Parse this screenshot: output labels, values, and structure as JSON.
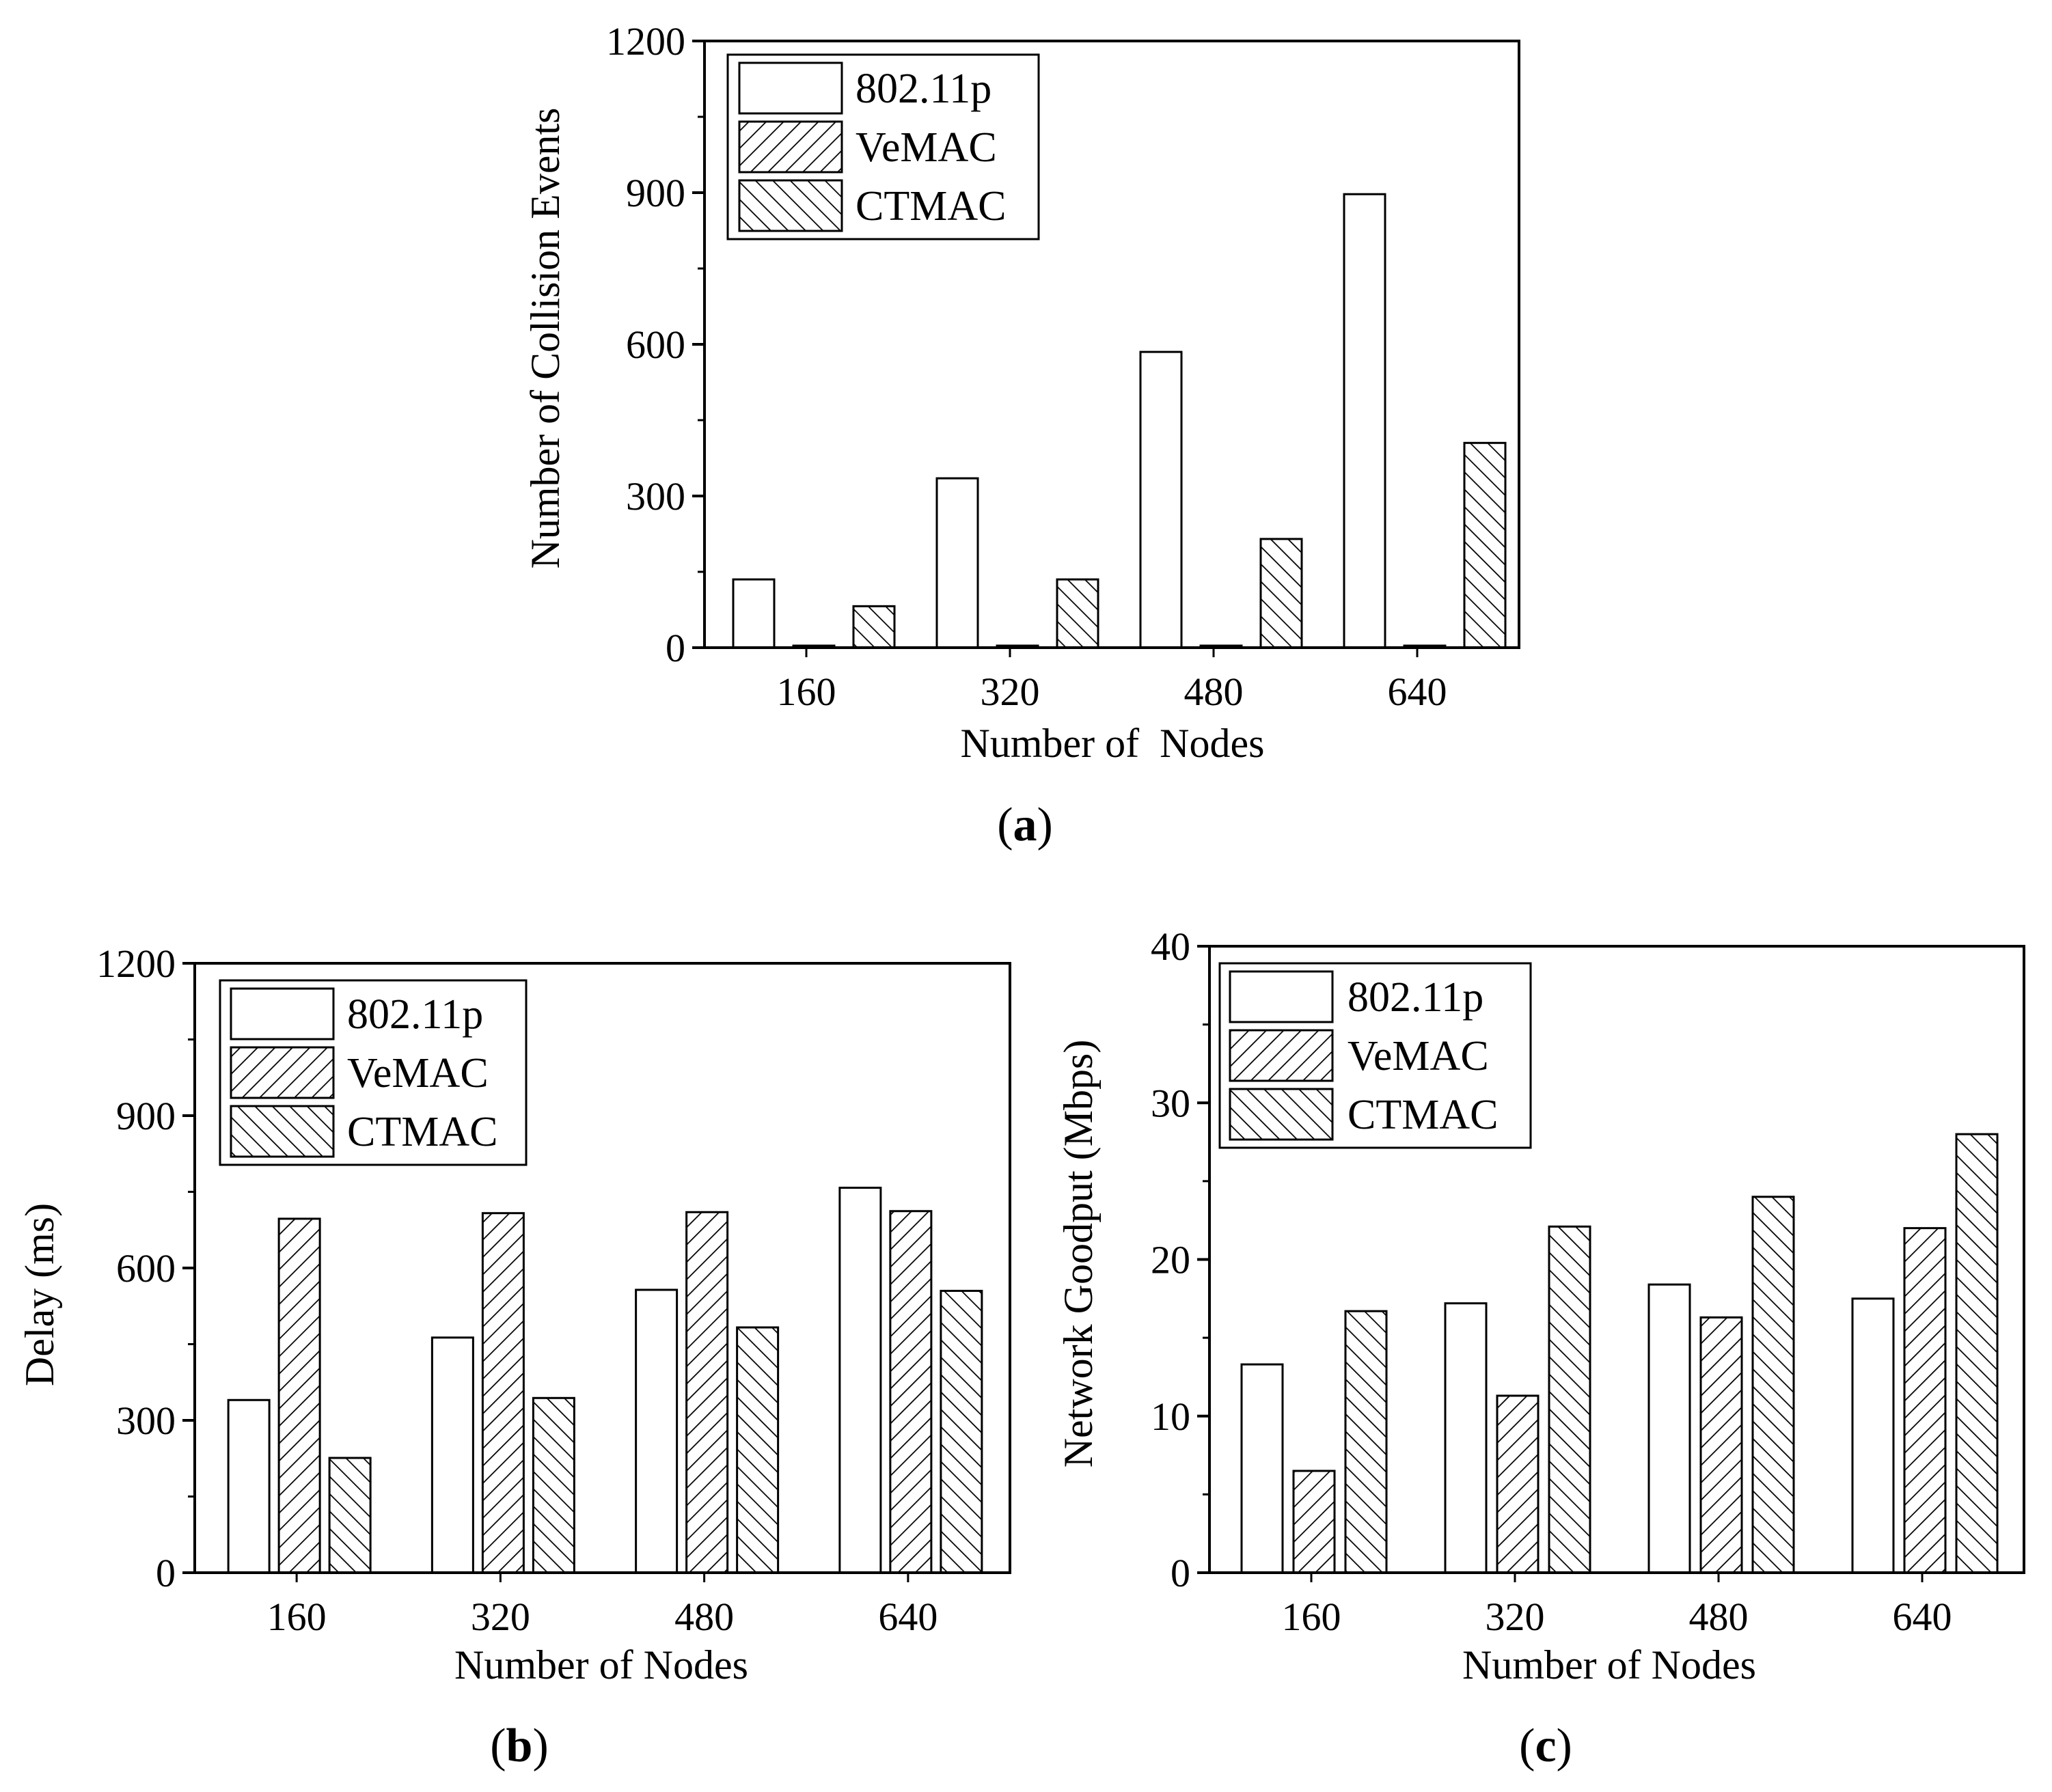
{
  "colors": {
    "ink": "#000000",
    "paper": "#ffffff"
  },
  "chart_data": [
    {
      "id": "a",
      "type": "bar",
      "caption": {
        "open": "(",
        "letter": "a",
        "close": ")"
      },
      "title": "",
      "xlabel": "Number of  Nodes",
      "ylabel": "Number of Collision Events",
      "categories": [
        "160",
        "320",
        "480",
        "640"
      ],
      "ylim": [
        0,
        1200
      ],
      "yticks": [
        "0",
        "300",
        "600",
        "900",
        "1200"
      ],
      "legend_position": "top-left",
      "series": [
        {
          "name": "802.11p",
          "pattern": "none",
          "values": [
            135,
            335,
            585,
            897
          ]
        },
        {
          "name": "VeMAC",
          "pattern": "forward-hatch",
          "values": [
            4,
            4,
            4,
            4
          ]
        },
        {
          "name": "CTMAC",
          "pattern": "back-hatch",
          "values": [
            82,
            135,
            215,
            405
          ]
        }
      ]
    },
    {
      "id": "b",
      "type": "bar",
      "caption": {
        "open": "(",
        "letter": "b",
        "close": ")"
      },
      "title": "",
      "xlabel": "Number of Nodes",
      "ylabel": "Delay (ms)",
      "categories": [
        "160",
        "320",
        "480",
        "640"
      ],
      "ylim": [
        0,
        1200
      ],
      "yticks": [
        "0",
        "300",
        "600",
        "900",
        "1200"
      ],
      "legend_position": "top-left",
      "series": [
        {
          "name": "802.11p",
          "pattern": "none",
          "values": [
            340,
            463,
            557,
            758
          ]
        },
        {
          "name": "VeMAC",
          "pattern": "forward-hatch",
          "values": [
            697,
            708,
            710,
            712
          ]
        },
        {
          "name": "CTMAC",
          "pattern": "back-hatch",
          "values": [
            226,
            344,
            483,
            555
          ]
        }
      ]
    },
    {
      "id": "c",
      "type": "bar",
      "caption": {
        "open": "(",
        "letter": "c",
        "close": ")"
      },
      "title": "",
      "xlabel": "Number of Nodes",
      "ylabel": "Network Goodput (Mbps)",
      "categories": [
        "160",
        "320",
        "480",
        "640"
      ],
      "ylim": [
        0,
        40
      ],
      "yticks": [
        "0",
        "10",
        "20",
        "30",
        "40"
      ],
      "legend_position": "top-left",
      "series": [
        {
          "name": "802.11p",
          "pattern": "none",
          "values": [
            13.3,
            17.2,
            18.4,
            17.5
          ]
        },
        {
          "name": "VeMAC",
          "pattern": "forward-hatch",
          "values": [
            6.5,
            11.3,
            16.3,
            22.0
          ]
        },
        {
          "name": "CTMAC",
          "pattern": "back-hatch",
          "values": [
            16.7,
            22.1,
            24.0,
            28.0
          ]
        }
      ]
    }
  ]
}
